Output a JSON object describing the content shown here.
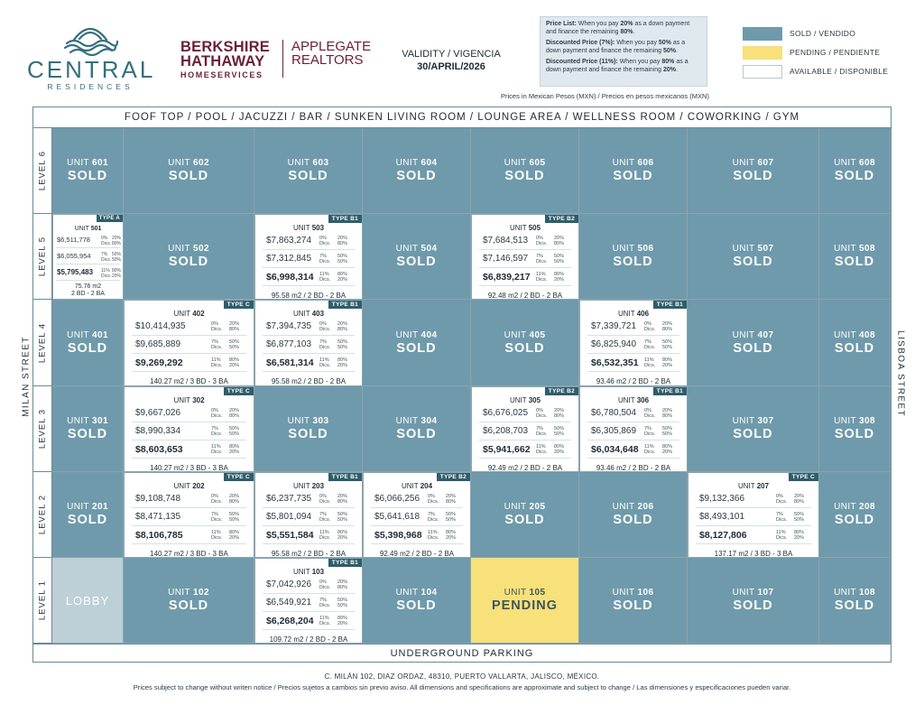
{
  "header": {
    "logo_name": "CENTRAL",
    "logo_sub": "RESIDENCES",
    "brokerage_line1": "BERKSHIRE",
    "brokerage_line2": "HATHAWAY",
    "brokerage_line3": "HOMESERVICES",
    "agency_line1": "APPLEGATE",
    "agency_line2": "REALTORS",
    "validity_label": "VALIDITY / VIGENCIA",
    "validity_date": "30/APRIL/2026",
    "prices_note": "Prices in Mexican Pesos (MXN) / Precios en pesos mexicanos (MXN)"
  },
  "price_notes": [
    {
      "b": "Price List:",
      "t1": " When you pay ",
      "p": "20%",
      "t2": " as a down payment and finance the remaining ",
      "r": "80%",
      "end": "."
    },
    {
      "b": "Discounted Price (7%):",
      "t1": " When you pay ",
      "p": "50%",
      "t2": " as a down payment and finance the remaining ",
      "r": "50%",
      "end": "."
    },
    {
      "b": "Discounted Price (11%):",
      "t1": " When you pay ",
      "p": "80%",
      "t2": " as a down payment and finance the remaining ",
      "r": "20%",
      "end": "."
    }
  ],
  "legend": [
    {
      "label": "SOLD / VENDIDO",
      "color": "#6f9aab"
    },
    {
      "label": "PENDING / PENDIENTE",
      "color": "#f8e07a"
    },
    {
      "label": "AVAILABLE / DISPONIBLE",
      "color": "#ffffff"
    }
  ],
  "amenities": "FOOF TOP / POOL / JACUZZI / BAR / SUNKEN LIVING ROOM / LOUNGE AREA / WELLNESS ROOM / COWORKING / GYM",
  "parking": "UNDERGROUND PARKING",
  "streets": {
    "west": "MILAN STREET",
    "east": "LISBOA STREET"
  },
  "levels": [
    "LEVEL 6",
    "LEVEL 5",
    "LEVEL 4",
    "LEVEL 3",
    "LEVEL 2",
    "LEVEL 1"
  ],
  "common": {
    "unit_word": "UNIT",
    "sold": "SOLD",
    "pending": "PENDING",
    "lobby": "LOBBY",
    "terms": [
      {
        "a": "0%",
        "b": "Dics.",
        "c": "20%",
        "d": "80%"
      },
      {
        "a": "7%",
        "b": "Dics.",
        "c": "50%",
        "d": "50%"
      },
      {
        "a": "11%",
        "b": "Dics.",
        "c": "80%",
        "d": "20%"
      }
    ]
  },
  "units": [
    {
      "num": "601",
      "status": "sold"
    },
    {
      "num": "602",
      "status": "sold"
    },
    {
      "num": "603",
      "status": "sold"
    },
    {
      "num": "604",
      "status": "sold"
    },
    {
      "num": "605",
      "status": "sold"
    },
    {
      "num": "606",
      "status": "sold"
    },
    {
      "num": "607",
      "status": "sold"
    },
    {
      "num": "608",
      "status": "sold"
    },
    {
      "num": "501",
      "status": "available",
      "type": "TYPE A",
      "prices": [
        "$6,511,778",
        "$6,055,954",
        "$5,795,483"
      ],
      "area": "75.76 m2",
      "rooms": "2 BD - 2 BA"
    },
    {
      "num": "502",
      "status": "sold"
    },
    {
      "num": "503",
      "status": "available",
      "type": "TYPE B1",
      "prices": [
        "$7,863,274",
        "$7,312,845",
        "$6,998,314"
      ],
      "area": "95.58 m2 / 2 BD - 2 BA"
    },
    {
      "num": "504",
      "status": "sold"
    },
    {
      "num": "505",
      "status": "available",
      "type": "TYPE B2",
      "prices": [
        "$7,684,513",
        "$7,146,597",
        "$6,839,217"
      ],
      "area": "92.48 m2 / 2 BD - 2 BA"
    },
    {
      "num": "506",
      "status": "sold"
    },
    {
      "num": "507",
      "status": "sold"
    },
    {
      "num": "508",
      "status": "sold"
    },
    {
      "num": "401",
      "status": "sold"
    },
    {
      "num": "402",
      "status": "available",
      "type": "TYPE C",
      "prices": [
        "$10,414,935",
        "$9,685,889",
        "$9,269,292"
      ],
      "area": "140.27 m2 / 3 BD - 3 BA"
    },
    {
      "num": "403",
      "status": "available",
      "type": "TYPE B1",
      "prices": [
        "$7,394,735",
        "$6,877,103",
        "$6,581,314"
      ],
      "area": "95.58 m2 / 2 BD - 2 BA"
    },
    {
      "num": "404",
      "status": "sold"
    },
    {
      "num": "405",
      "status": "sold"
    },
    {
      "num": "406",
      "status": "available",
      "type": "TYPE B1",
      "prices": [
        "$7,339,721",
        "$6,825,940",
        "$6,532,351"
      ],
      "area": "93.46 m2 / 2 BD - 2 BA"
    },
    {
      "num": "407",
      "status": "sold"
    },
    {
      "num": "408",
      "status": "sold"
    },
    {
      "num": "301",
      "status": "sold"
    },
    {
      "num": "302",
      "status": "available",
      "type": "TYPE C",
      "prices": [
        "$9,667,026",
        "$8,990,334",
        "$8,603,653"
      ],
      "area": "140.27 m2 / 3 BD - 3 BA"
    },
    {
      "num": "303",
      "status": "sold"
    },
    {
      "num": "304",
      "status": "sold"
    },
    {
      "num": "305",
      "status": "available",
      "type": "TYPE B2",
      "prices": [
        "$6,676,025",
        "$6,208,703",
        "$5,941,662"
      ],
      "area": "92.49 m2 / 2 BD - 2 BA"
    },
    {
      "num": "306",
      "status": "available",
      "type": "TYPE B1",
      "prices": [
        "$6,780,504",
        "$6,305,869",
        "$6,034,648"
      ],
      "area": "93.46 m2 / 2 BD - 2 BA"
    },
    {
      "num": "307",
      "status": "sold"
    },
    {
      "num": "308",
      "status": "sold"
    },
    {
      "num": "201",
      "status": "sold"
    },
    {
      "num": "202",
      "status": "available",
      "type": "TYPE C",
      "prices": [
        "$9,108,748",
        "$8,471,135",
        "$8,106,785"
      ],
      "area": "140.27 m2 / 3 BD - 3 BA"
    },
    {
      "num": "203",
      "status": "available",
      "type": "TYPE B1",
      "prices": [
        "$6,237,735",
        "$5,801,094",
        "$5,551,584"
      ],
      "area": "95.58 m2 / 2 BD - 2 BA"
    },
    {
      "num": "204",
      "status": "available",
      "type": "TYPE B2",
      "prices": [
        "$6,066,256",
        "$5,641,618",
        "$5,398,968"
      ],
      "area": "92.49 m2 / 2 BD - 2 BA"
    },
    {
      "num": "205",
      "status": "sold"
    },
    {
      "num": "206",
      "status": "sold"
    },
    {
      "num": "207",
      "status": "available",
      "type": "TYPE C",
      "prices": [
        "$9,132,366",
        "$8,493,101",
        "$8,127,806"
      ],
      "area": "137.17 m2 / 3 BD - 3 BA"
    },
    {
      "num": "208",
      "status": "sold"
    },
    {
      "num": "",
      "status": "lobby"
    },
    {
      "num": "102",
      "status": "sold"
    },
    {
      "num": "103",
      "status": "available",
      "type": "TYPE B1",
      "prices": [
        "$7,042,926",
        "$6,549,921",
        "$6,268,204"
      ],
      "area": "109.72 m2 / 2 BD - 2 BA"
    },
    {
      "num": "104",
      "status": "sold"
    },
    {
      "num": "105",
      "status": "pending"
    },
    {
      "num": "106",
      "status": "sold"
    },
    {
      "num": "107",
      "status": "sold"
    },
    {
      "num": "108",
      "status": "sold"
    }
  ],
  "footer": {
    "address": "C. MILÁN 102, DIAZ ORDAZ, 48310, PUERTO VALLARTA, JALISCO, MÉXICO.",
    "disclaimer": "Prices subject to change without writen notice / Precios sujetos a cambios sin previo aviso. All dimensions and specifications are approximate and subject to change / Las dimensiones y especificaciones pueden variar."
  }
}
